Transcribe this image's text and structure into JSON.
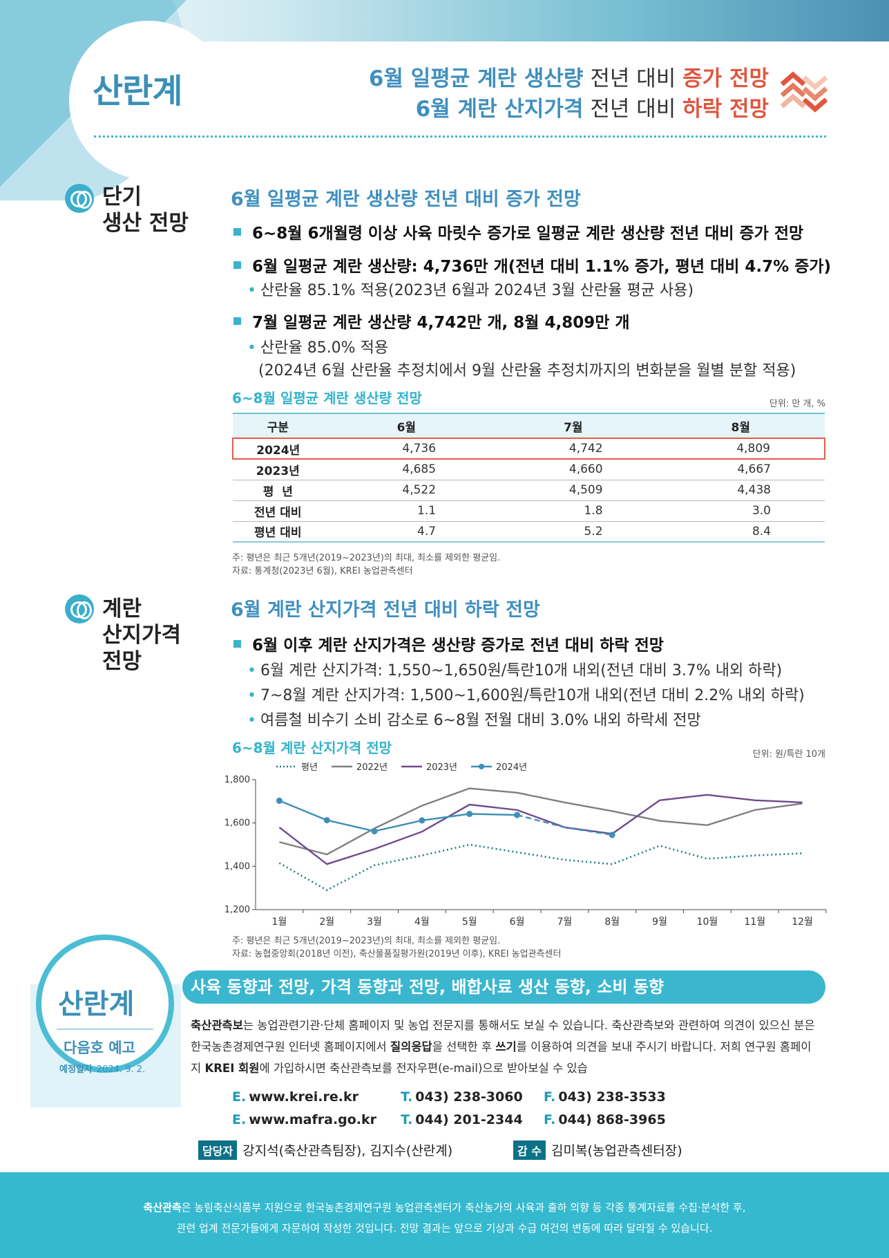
{
  "header": {
    "brand": "산란계",
    "headline1": {
      "a": "6월 일평균 계란 생산량",
      "b": " 전년 대비 ",
      "c": "증가 전망"
    },
    "headline2": {
      "a": "6월 계란 산지가격",
      "b": " 전년 대비 ",
      "c": "하락 전망"
    }
  },
  "section1": {
    "label1": "단기",
    "label2": "생산 전망",
    "title": "6월 일평균 계란 생산량 전년 대비 증가 전망",
    "b1": "6~8월 6개월령 이상 사육 마릿수 증가로 일평균 계란 생산량 전년 대비 증가 전망",
    "b2": "6월 일평균 계란 생산량: 4,736만 개(전년 대비 1.1% 증가, 평년 대비 4.7% 증가)",
    "b2s": "산란율 85.1% 적용(2023년 6월과 2024년 3월 산란율 평균 사용)",
    "b3": "7월 일평균 계란 생산량 4,742만 개, 8월 4,809만 개",
    "b3s": "산란율 85.0% 적용",
    "b3s2": "(2024년 6월 산란율 추정치에서 9월 산란율 추정치까지의 변화분을 월별 분할 적용)",
    "table_title": "6~8월 일평균 계란 생산량 전망",
    "unit": "단위: 만 개, %",
    "table": {
      "headers": [
        "구분",
        "6월",
        "7월",
        "8월"
      ],
      "rows": [
        [
          "2024년",
          "4,736",
          "4,742",
          "4,809"
        ],
        [
          "2023년",
          "4,685",
          "4,660",
          "4,667"
        ],
        [
          "평  년",
          "4,522",
          "4,509",
          "4,438"
        ],
        [
          "전년 대비",
          "1.1",
          "1.8",
          "3.0"
        ],
        [
          "평년 대비",
          "4.7",
          "5.2",
          "8.4"
        ]
      ]
    },
    "note1": "주: 평년은 최근 5개년(2019~2023년)의 최대, 최소를 제외한 평균임.",
    "note2": "자료: 통계청(2023년 6월), KREI 농업관측센터"
  },
  "section2": {
    "label1": "계란",
    "label2": "산지가격",
    "label3": "전망",
    "title": "6월 계란 산지가격 전년 대비 하락 전망",
    "b1": "6월 이후 계란 산지가격은 생산량 증가로 전년 대비 하락 전망",
    "s1": "6월 계란 산지가격: 1,550~1,650원/특란10개 내외(전년 대비 3.7% 내외 하락)",
    "s2": "7~8월 계란 산지가격: 1,500~1,600원/특란10개 내외(전년 대비 2.2% 내외 하락)",
    "s3": "여름철 비수기 소비 감소로 6~8월 전월 대비 3.0% 내외 하락세 전망",
    "chart_title": "6~8월 계란 산지가격 전망",
    "unit": "단위: 원/특란 10개",
    "note1": "주: 평년은 최근 5개년(2019~2023년)의 최대, 최소를 제외한 평균임.",
    "note2": "자료: 농협중앙회(2018년 이전), 축산물품질평가원(2019년 이후), KREI 농업관측센터"
  },
  "chart_data": {
    "type": "line",
    "title": "6~8월 계란 산지가격 전망",
    "categories": [
      "1월",
      "2월",
      "3월",
      "4월",
      "5월",
      "6월",
      "7월",
      "8월",
      "9월",
      "10월",
      "11월",
      "12월"
    ],
    "ylim": [
      1200,
      1800
    ],
    "yticks": [
      "1,200",
      "1,400",
      "1,600",
      "1,800"
    ],
    "legend_position": "top-left",
    "series": [
      {
        "name": "평년",
        "color": "#1f7a80",
        "style": "dotted",
        "values": [
          1415,
          1290,
          1405,
          1450,
          1500,
          1465,
          1430,
          1410,
          1495,
          1435,
          1450,
          1460
        ]
      },
      {
        "name": "2022년",
        "color": "#7f7f7f",
        "style": "solid",
        "values": [
          1512,
          1455,
          1575,
          1680,
          1760,
          1740,
          1695,
          1655,
          1610,
          1590,
          1660,
          1690
        ]
      },
      {
        "name": "2023년",
        "color": "#6e4a8e",
        "style": "solid",
        "values": [
          1580,
          1410,
          1480,
          1560,
          1685,
          1660,
          1580,
          1550,
          1705,
          1730,
          1705,
          1695
        ]
      },
      {
        "name": "2024년",
        "color": "#3d8fb5",
        "style": "solid-marker",
        "values": [
          1703,
          1613,
          1562,
          1612,
          1642,
          1637,
          null,
          null,
          null,
          null,
          null,
          null
        ],
        "forecast": {
          "from_index": 5,
          "values": [
            1637,
            1580,
            1545
          ]
        }
      }
    ]
  },
  "bottom": {
    "brand": "산란계",
    "next": "다음호 예고",
    "date_label": "예정일자",
    "date": "2024. 9. 2.",
    "topics": "사육 동향과 전망, 가격 동향과 전망, 배합사료 생산 동향, 소비 동향",
    "p1": "축산관측보",
    "p2": "는 농업관련기관·단체 홈페이지 및 농업 전문지를 통해서도 보실 수 있습니다. 축산관측보와 관련하여 의견이 있으신 분은 한국농촌경제연구원 인터넷 홈페이지에서 ",
    "p3": "질의응답",
    "p4": "을 선택한 후 ",
    "p5": "쓰기",
    "p6": "를 이용하여 의견을 보내 주시기 바랍니다. 저희 연구원 홈페이지 ",
    "p7": "KREI 회원",
    "p8": "에 가입하시면 축산관측보를 전자우편(e-mail)으로 받아보실 수 있습",
    "contacts": [
      {
        "ek": "E.",
        "e": "www.krei.re.kr",
        "tk": "T.",
        "t": "043) 238-3060",
        "fk": "F.",
        "f": "043) 238-3533"
      },
      {
        "ek": "E.",
        "e": "www.mafra.go.kr",
        "tk": "T.",
        "t": "044) 201-2344",
        "fk": "F.",
        "f": "044) 868-3965"
      }
    ],
    "staff_tag": "담당자",
    "staff": "강지석(축산관측팀장), 김지수(산란계)",
    "super_tag": "감 수",
    "super": "김미복(농업관측센터장)"
  },
  "footer": {
    "f1": "축산관측",
    "f2": "은 농림축산식품부 지원으로 한국농촌경제연구원 농업관측센터가 축산농가의 사육과 출하 의향 등 각종 통계자료를 수집·분석한 후,",
    "f3": "관련 업계 전문가들에게 자문하여 작성한 것입니다. 전망 결과는 앞으로 기상과 수급 여건의 변동에 따라 달라질 수 있습니다."
  }
}
